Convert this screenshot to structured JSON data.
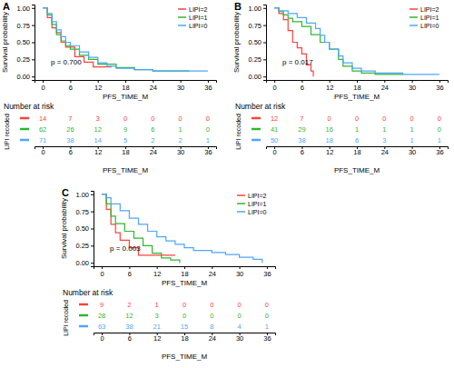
{
  "chart_data": [
    {
      "type": "line",
      "title": "A",
      "xlabel": "PFS_TIME_M",
      "ylabel": "Survival probability",
      "xlim": [
        -1.8,
        37.8
      ],
      "ylim": [
        -0.05,
        1.05
      ],
      "xticks": [
        0,
        6,
        12,
        18,
        24,
        30,
        36
      ],
      "yticks": [
        {
          "value": 0,
          "label": "0.00"
        },
        {
          "value": 0.25,
          "label": "0.25"
        },
        {
          "value": 0.5,
          "label": "0.50"
        },
        {
          "value": 0.75,
          "label": "0.75"
        },
        {
          "value": 1,
          "label": "1.00"
        }
      ],
      "legend": "top-right",
      "annotation": "p = 0.700",
      "series": [
        {
          "name": "LIPI=2",
          "color": "#ff4040",
          "line_style": "step",
          "x": [
            0,
            1,
            2,
            3,
            4,
            5,
            7,
            9,
            11,
            15
          ],
          "values": [
            1,
            0.86,
            0.71,
            0.64,
            0.5,
            0.43,
            0.29,
            0.21,
            0.14,
            0.14
          ]
        },
        {
          "name": "LIPI=1",
          "color": "#2db82d",
          "line_style": "step",
          "x": [
            0,
            1,
            2,
            3,
            4,
            5,
            6,
            8,
            10,
            12,
            16,
            20,
            24,
            32
          ],
          "values": [
            1,
            0.9,
            0.76,
            0.61,
            0.52,
            0.45,
            0.4,
            0.31,
            0.25,
            0.18,
            0.13,
            0.1,
            0.08,
            0.08
          ]
        },
        {
          "name": "LIPI=0",
          "color": "#4da6ff",
          "line_style": "step",
          "x": [
            0,
            1,
            2,
            3,
            4,
            5,
            6,
            8,
            10,
            12,
            14,
            16,
            20,
            24,
            36
          ],
          "values": [
            1,
            0.92,
            0.8,
            0.68,
            0.58,
            0.5,
            0.45,
            0.36,
            0.28,
            0.2,
            0.15,
            0.12,
            0.1,
            0.08,
            0.08
          ]
        }
      ],
      "risk_table": {
        "title": "Number at risk",
        "ylabel": "LIPI recoded",
        "xlabel": "PFS_TIME_M",
        "xticks": [
          0,
          6,
          12,
          18,
          24,
          30,
          36
        ],
        "rows": [
          {
            "color": "#ff4040",
            "values": [
              14,
              7,
              3,
              0,
              0,
              0,
              0
            ]
          },
          {
            "color": "#2db82d",
            "values": [
              62,
              26,
              12,
              9,
              6,
              1,
              0
            ]
          },
          {
            "color": "#4da6ff",
            "values": [
              71,
              38,
              14,
              5,
              2,
              2,
              1
            ]
          }
        ]
      }
    },
    {
      "type": "line",
      "title": "B",
      "xlabel": "PFS_TIME_M",
      "ylabel": "Survival probability",
      "xlim": [
        -1.8,
        37.8
      ],
      "ylim": [
        -0.05,
        1.05
      ],
      "xticks": [
        0,
        6,
        12,
        18,
        24,
        30,
        36
      ],
      "yticks": [
        {
          "value": 0,
          "label": "0.00"
        },
        {
          "value": 0.25,
          "label": "0.25"
        },
        {
          "value": 0.5,
          "label": "0.50"
        },
        {
          "value": 0.75,
          "label": "0.75"
        },
        {
          "value": 1,
          "label": "1.00"
        }
      ],
      "legend": "top-right",
      "annotation": "p = 0.017",
      "series": [
        {
          "name": "LIPI=2",
          "color": "#ff4040",
          "line_style": "step",
          "x": [
            0,
            1,
            2,
            3,
            4,
            5,
            6,
            7,
            8,
            8.5
          ],
          "values": [
            1,
            0.92,
            0.83,
            0.67,
            0.5,
            0.42,
            0.33,
            0.17,
            0.08,
            0
          ]
        },
        {
          "name": "LIPI=1",
          "color": "#2db82d",
          "line_style": "step",
          "x": [
            0,
            1,
            2,
            3,
            4,
            6,
            8,
            10,
            12,
            14,
            15,
            17,
            19,
            22,
            28
          ],
          "values": [
            1,
            0.95,
            0.9,
            0.85,
            0.8,
            0.73,
            0.61,
            0.5,
            0.4,
            0.25,
            0.15,
            0.08,
            0.05,
            0.03,
            0.03
          ]
        },
        {
          "name": "LIPI=0",
          "color": "#4da6ff",
          "line_style": "step",
          "x": [
            0,
            1,
            3,
            5,
            7,
            9,
            10,
            11,
            12,
            14,
            15,
            17,
            19,
            22,
            28,
            36
          ],
          "values": [
            1,
            0.96,
            0.92,
            0.86,
            0.78,
            0.7,
            0.6,
            0.5,
            0.4,
            0.3,
            0.2,
            0.12,
            0.08,
            0.05,
            0.03,
            0.03
          ]
        }
      ],
      "risk_table": {
        "title": "Number at risk",
        "ylabel": "LIPI recoded",
        "xlabel": "PFS_TIME_M",
        "xticks": [
          0,
          6,
          12,
          18,
          24,
          30,
          36
        ],
        "rows": [
          {
            "color": "#ff4040",
            "values": [
              12,
              7,
              0,
              0,
              0,
              0,
              0
            ]
          },
          {
            "color": "#2db82d",
            "values": [
              41,
              29,
              16,
              1,
              1,
              1,
              0
            ]
          },
          {
            "color": "#4da6ff",
            "values": [
              50,
              38,
              18,
              6,
              3,
              1,
              1
            ]
          }
        ]
      }
    },
    {
      "type": "line",
      "title": "C",
      "xlabel": "PFS_TIME_M",
      "ylabel": "Survival probability",
      "xlim": [
        -1.8,
        37.8
      ],
      "ylim": [
        -0.05,
        1.05
      ],
      "xticks": [
        0,
        6,
        12,
        18,
        24,
        30,
        36
      ],
      "yticks": [
        {
          "value": 0,
          "label": "0.00"
        },
        {
          "value": 0.25,
          "label": "0.25"
        },
        {
          "value": 0.5,
          "label": "0.50"
        },
        {
          "value": 0.75,
          "label": "0.75"
        },
        {
          "value": 1,
          "label": "1.00"
        }
      ],
      "legend": "top-right",
      "annotation": "p = 0.003",
      "series": [
        {
          "name": "LIPI=2",
          "color": "#ff4040",
          "line_style": "step",
          "x": [
            0,
            1,
            2,
            3,
            4,
            6,
            8,
            16
          ],
          "values": [
            1,
            0.78,
            0.56,
            0.44,
            0.33,
            0.22,
            0.11,
            0.11
          ]
        },
        {
          "name": "LIPI=1",
          "color": "#2db82d",
          "line_style": "step",
          "x": [
            0,
            1,
            2,
            3,
            5,
            7,
            9,
            11,
            13,
            15,
            17
          ],
          "values": [
            1,
            0.86,
            0.68,
            0.57,
            0.46,
            0.36,
            0.25,
            0.14,
            0.07,
            0.04,
            0
          ]
        },
        {
          "name": "LIPI=0",
          "color": "#4da6ff",
          "line_style": "step",
          "x": [
            0,
            1,
            2,
            4,
            6,
            8,
            10,
            12,
            14,
            16,
            18,
            20,
            24,
            27,
            30,
            33,
            35
          ],
          "values": [
            1,
            0.95,
            0.86,
            0.76,
            0.65,
            0.56,
            0.46,
            0.38,
            0.32,
            0.27,
            0.22,
            0.18,
            0.15,
            0.12,
            0.08,
            0.05,
            0
          ]
        }
      ],
      "risk_table": {
        "title": "Number at risk",
        "ylabel": "LIPI recoded",
        "xlabel": "PFS_TIME_M",
        "xticks": [
          0,
          6,
          12,
          18,
          24,
          30,
          36
        ],
        "rows": [
          {
            "color": "#ff4040",
            "values": [
              9,
              2,
              1,
              0,
              0,
              0,
              0
            ]
          },
          {
            "color": "#2db82d",
            "values": [
              28,
              12,
              3,
              0,
              0,
              0,
              0
            ]
          },
          {
            "color": "#4da6ff",
            "values": [
              63,
              38,
              21,
              15,
              8,
              4,
              1
            ]
          }
        ]
      }
    }
  ]
}
